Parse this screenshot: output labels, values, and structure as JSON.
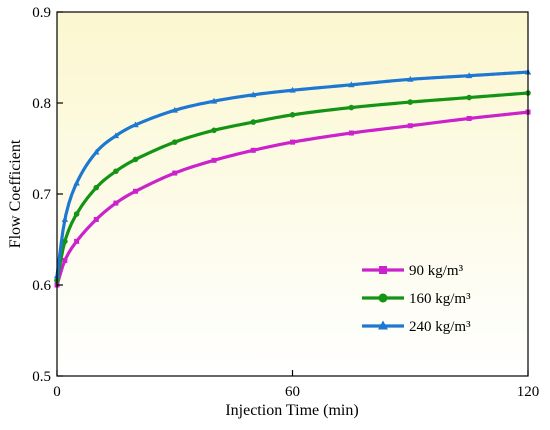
{
  "chart_data": {
    "type": "line",
    "xlabel": "Injection Time (min)",
    "ylabel": "Flow Coefficient",
    "xlim": [
      0,
      120
    ],
    "ylim": [
      0.5,
      0.9
    ],
    "xticks": [
      0,
      60,
      120
    ],
    "yticks": [
      0.5,
      0.6,
      0.7,
      0.8,
      0.9
    ],
    "xtick_labels": [
      "0",
      "60",
      "120"
    ],
    "ytick_labels": [
      "0.5",
      "0.6",
      "0.7",
      "0.8",
      "0.9"
    ],
    "grid": false,
    "legend_position": "lower-right",
    "background": "gradient-yellow",
    "series": [
      {
        "name": "90  kg/m³",
        "color": "#CC22CC",
        "marker": "square",
        "x": [
          0,
          2,
          5,
          10,
          15,
          20,
          30,
          40,
          50,
          60,
          75,
          90,
          105,
          120
        ],
        "values": [
          0.6,
          0.627,
          0.648,
          0.672,
          0.69,
          0.703,
          0.723,
          0.737,
          0.748,
          0.757,
          0.767,
          0.775,
          0.783,
          0.79
        ]
      },
      {
        "name": "160 kg/m³",
        "color": "#149414",
        "marker": "circle",
        "x": [
          0,
          2,
          5,
          10,
          15,
          20,
          30,
          40,
          50,
          60,
          75,
          90,
          105,
          120
        ],
        "values": [
          0.605,
          0.648,
          0.678,
          0.707,
          0.725,
          0.738,
          0.757,
          0.77,
          0.779,
          0.787,
          0.795,
          0.801,
          0.806,
          0.811
        ]
      },
      {
        "name": "240 kg/m³",
        "color": "#1E78D2",
        "marker": "triangle",
        "x": [
          0,
          2,
          5,
          10,
          15,
          20,
          30,
          40,
          50,
          60,
          75,
          90,
          105,
          120
        ],
        "values": [
          0.61,
          0.672,
          0.712,
          0.746,
          0.764,
          0.776,
          0.792,
          0.802,
          0.809,
          0.814,
          0.82,
          0.826,
          0.83,
          0.834
        ]
      }
    ]
  }
}
